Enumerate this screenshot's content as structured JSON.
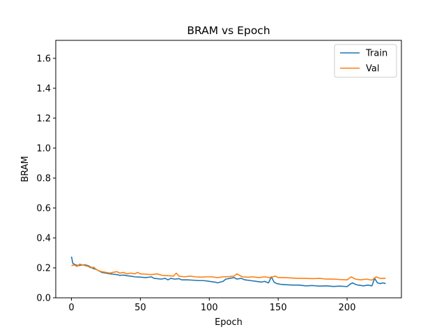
{
  "chart_data": {
    "type": "line",
    "title": "BRAM vs Epoch",
    "xlabel": "Epoch",
    "ylabel": "BRAM",
    "xlim": [
      -11.4,
      239.4
    ],
    "ylim": [
      0,
      1.72
    ],
    "xticks": [
      0,
      50,
      100,
      150,
      200
    ],
    "yticks": [
      0.0,
      0.2,
      0.4,
      0.6,
      0.8,
      1.0,
      1.2,
      1.4,
      1.6
    ],
    "xtick_labels": [
      "0",
      "50",
      "100",
      "150",
      "200"
    ],
    "ytick_labels": [
      "0.0",
      "0.2",
      "0.4",
      "0.6",
      "0.8",
      "1.0",
      "1.2",
      "1.4",
      "1.6"
    ],
    "legend_position": "top-right",
    "grid": false,
    "series": [
      {
        "name": "Train",
        "color": "#1f77b4",
        "x": [
          0,
          1,
          3,
          5,
          8,
          10,
          12,
          14,
          16,
          18,
          20,
          22,
          25,
          28,
          30,
          33,
          35,
          38,
          40,
          43,
          46,
          50,
          54,
          58,
          60,
          62,
          65,
          68,
          70,
          72,
          75,
          78,
          80,
          84,
          88,
          92,
          96,
          100,
          104,
          106,
          108,
          110,
          112,
          115,
          118,
          120,
          123,
          126,
          130,
          134,
          138,
          140,
          143,
          145,
          147,
          149,
          152,
          155,
          160,
          165,
          170,
          175,
          180,
          185,
          190,
          195,
          200,
          202,
          204,
          206,
          208,
          212,
          215,
          218,
          220,
          222,
          224,
          226,
          228
        ],
        "values": [
          0.275,
          0.23,
          0.22,
          0.215,
          0.22,
          0.22,
          0.215,
          0.205,
          0.195,
          0.19,
          0.18,
          0.17,
          0.165,
          0.16,
          0.158,
          0.155,
          0.15,
          0.152,
          0.148,
          0.145,
          0.14,
          0.138,
          0.135,
          0.14,
          0.13,
          0.128,
          0.125,
          0.13,
          0.12,
          0.13,
          0.125,
          0.128,
          0.12,
          0.12,
          0.118,
          0.115,
          0.115,
          0.11,
          0.105,
          0.1,
          0.105,
          0.11,
          0.125,
          0.13,
          0.135,
          0.125,
          0.13,
          0.12,
          0.115,
          0.11,
          0.105,
          0.11,
          0.1,
          0.14,
          0.105,
          0.095,
          0.09,
          0.088,
          0.085,
          0.085,
          0.08,
          0.082,
          0.078,
          0.08,
          0.076,
          0.078,
          0.075,
          0.09,
          0.1,
          0.09,
          0.085,
          0.08,
          0.085,
          0.08,
          0.13,
          0.1,
          0.095,
          0.1,
          0.095
        ]
      },
      {
        "name": "Val",
        "color": "#ff7f0e",
        "x": [
          0,
          2,
          4,
          6,
          8,
          10,
          12,
          14,
          16,
          18,
          20,
          22,
          25,
          28,
          30,
          33,
          35,
          38,
          40,
          43,
          46,
          48,
          50,
          54,
          58,
          62,
          66,
          70,
          74,
          76,
          78,
          82,
          86,
          90,
          94,
          98,
          102,
          106,
          110,
          115,
          118,
          120,
          124,
          128,
          132,
          136,
          140,
          144,
          148,
          150,
          155,
          160,
          165,
          170,
          175,
          180,
          185,
          190,
          195,
          200,
          203,
          206,
          210,
          214,
          218,
          221,
          224,
          228
        ],
        "values": [
          0.215,
          0.22,
          0.21,
          0.225,
          0.22,
          0.215,
          0.21,
          0.2,
          0.205,
          0.19,
          0.18,
          0.175,
          0.17,
          0.165,
          0.17,
          0.175,
          0.165,
          0.17,
          0.16,
          0.165,
          0.16,
          0.17,
          0.16,
          0.158,
          0.155,
          0.16,
          0.15,
          0.148,
          0.145,
          0.165,
          0.145,
          0.14,
          0.145,
          0.14,
          0.138,
          0.14,
          0.14,
          0.135,
          0.14,
          0.142,
          0.145,
          0.16,
          0.14,
          0.138,
          0.14,
          0.135,
          0.14,
          0.135,
          0.145,
          0.135,
          0.135,
          0.132,
          0.13,
          0.13,
          0.128,
          0.13,
          0.125,
          0.125,
          0.122,
          0.12,
          0.14,
          0.125,
          0.12,
          0.125,
          0.118,
          0.14,
          0.13,
          0.13
        ]
      }
    ]
  }
}
